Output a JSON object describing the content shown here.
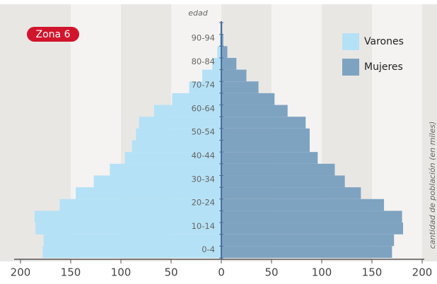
{
  "chart_data": {
    "type": "pyramid",
    "y_label": "edad",
    "x_label": "cantidad de población (en miles)",
    "annotation": "Zona 6",
    "categories": [
      "0-4",
      null,
      "10-14",
      null,
      "20-24",
      null,
      "30-34",
      null,
      "40-44",
      null,
      "50-54",
      null,
      "60-64",
      null,
      "70-74",
      null,
      "80-84",
      null,
      "90-94",
      null
    ],
    "series": [
      {
        "name": "Varones",
        "color": "#b4e1f6",
        "side": "left",
        "values": [
          178,
          177,
          185,
          186,
          161,
          145,
          127,
          111,
          96,
          89,
          85,
          82,
          67,
          49,
          32,
          19,
          9,
          4,
          1.5,
          1
        ]
      },
      {
        "name": "Mujeres",
        "color": "#7ea3c1",
        "side": "right",
        "values": [
          170,
          172,
          181,
          180,
          162,
          139,
          123,
          113,
          96,
          88,
          88,
          84,
          66,
          53,
          37,
          25,
          15,
          6,
          2,
          1
        ]
      }
    ],
    "xlim": [
      -200,
      200
    ],
    "xticks": [
      {
        "value": -200,
        "label": "200"
      },
      {
        "value": -150,
        "label": "150"
      },
      {
        "value": -100,
        "label": "100"
      },
      {
        "value": -50,
        "label": "50"
      },
      0,
      50,
      100,
      150,
      200
    ],
    "grid": true,
    "legend": "top-right"
  }
}
